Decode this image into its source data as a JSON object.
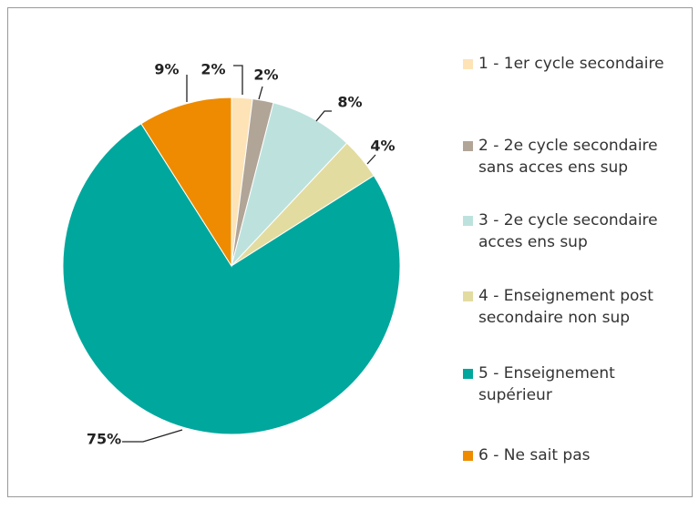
{
  "chart_data": {
    "type": "pie",
    "categories": [
      "1 - 1er cycle secondaire",
      "2 - 2e cycle secondaire sans acces ens sup",
      "3 - 2e cycle secondaire acces ens sup",
      "4 - Enseignement post secondaire non sup",
      "5 - Enseignement supérieur",
      "6 - Ne sait pas"
    ],
    "values": [
      2,
      2,
      8,
      4,
      75,
      9
    ],
    "value_labels": [
      "2%",
      "2%",
      "8%",
      "4%",
      "75%",
      "9%"
    ],
    "colors": [
      "#fde3b6",
      "#b1a598",
      "#bde2de",
      "#e3dca0",
      "#00a79d",
      "#ee8b00"
    ],
    "legend": "right"
  }
}
